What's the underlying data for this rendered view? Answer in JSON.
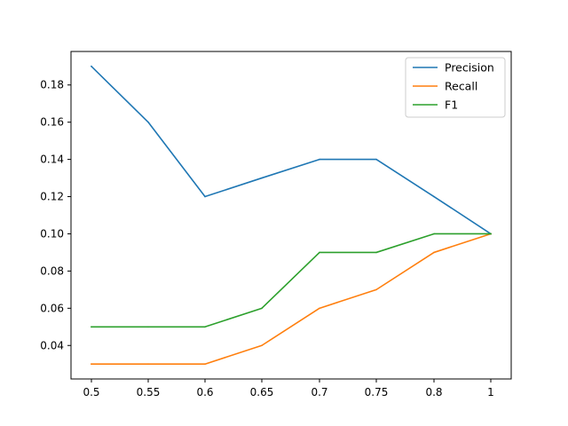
{
  "chart_data": {
    "type": "line",
    "title": "",
    "xlabel": "",
    "ylabel": "",
    "categories": [
      "0.5",
      "0.55",
      "0.6",
      "0.65",
      "0.7",
      "0.75",
      "0.8",
      "1"
    ],
    "yticks": [
      0.04,
      0.06,
      0.08,
      0.1,
      0.12,
      0.14,
      0.16,
      0.18
    ],
    "ytick_labels": [
      "0.04",
      "0.06",
      "0.08",
      "0.10",
      "0.12",
      "0.14",
      "0.16",
      "0.18"
    ],
    "ylim": [
      0.022,
      0.198
    ],
    "grid": false,
    "legend_position": "top-right",
    "series": [
      {
        "name": "Precision",
        "color": "#1f77b4",
        "values": [
          0.19,
          0.16,
          0.12,
          0.13,
          0.14,
          0.14,
          0.12,
          0.1
        ]
      },
      {
        "name": "Recall",
        "color": "#ff7f0e",
        "values": [
          0.03,
          0.03,
          0.03,
          0.04,
          0.06,
          0.07,
          0.09,
          0.1
        ]
      },
      {
        "name": "F1",
        "color": "#2ca02c",
        "values": [
          0.05,
          0.05,
          0.05,
          0.06,
          0.09,
          0.09,
          0.1,
          0.1
        ]
      }
    ]
  }
}
